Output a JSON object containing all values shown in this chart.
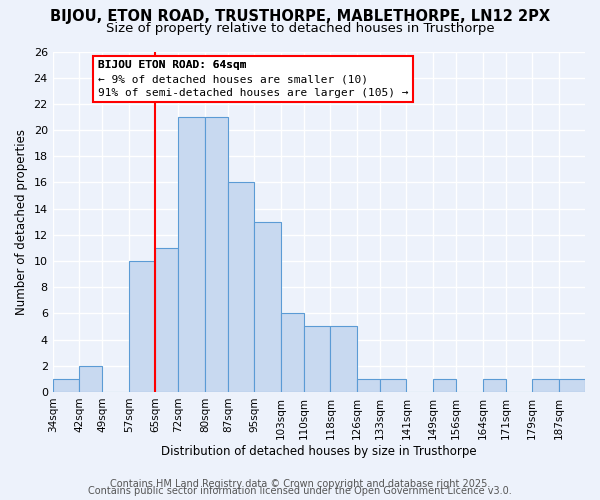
{
  "title": "BIJOU, ETON ROAD, TRUSTHORPE, MABLETHORPE, LN12 2PX",
  "subtitle": "Size of property relative to detached houses in Trusthorpe",
  "xlabel": "Distribution of detached houses by size in Trusthorpe",
  "ylabel": "Number of detached properties",
  "bin_labels": [
    "34sqm",
    "42sqm",
    "49sqm",
    "57sqm",
    "65sqm",
    "72sqm",
    "80sqm",
    "87sqm",
    "95sqm",
    "103sqm",
    "110sqm",
    "118sqm",
    "126sqm",
    "133sqm",
    "141sqm",
    "149sqm",
    "156sqm",
    "164sqm",
    "171sqm",
    "179sqm",
    "187sqm"
  ],
  "bin_edges": [
    34,
    42,
    49,
    57,
    65,
    72,
    80,
    87,
    95,
    103,
    110,
    118,
    126,
    133,
    141,
    149,
    156,
    164,
    171,
    179,
    187
  ],
  "bar_heights": [
    1,
    2,
    0,
    10,
    11,
    21,
    21,
    16,
    13,
    6,
    5,
    5,
    1,
    1,
    0,
    1,
    0,
    1,
    0,
    1,
    1
  ],
  "bar_color": "#c8d9f0",
  "bar_edge_color": "#5b9bd5",
  "reference_line_x": 65,
  "reference_line_color": "red",
  "ylim": [
    0,
    26
  ],
  "yticks": [
    0,
    2,
    4,
    6,
    8,
    10,
    12,
    14,
    16,
    18,
    20,
    22,
    24,
    26
  ],
  "annotation_title": "BIJOU ETON ROAD: 64sqm",
  "annotation_line1": "← 9% of detached houses are smaller (10)",
  "annotation_line2": "91% of semi-detached houses are larger (105) →",
  "footer_line1": "Contains HM Land Registry data © Crown copyright and database right 2025.",
  "footer_line2": "Contains public sector information licensed under the Open Government Licence v3.0.",
  "background_color": "#edf2fb",
  "grid_color": "#ffffff",
  "title_fontsize": 10.5,
  "subtitle_fontsize": 9.5,
  "axis_fontsize": 8.5,
  "footer_fontsize": 7
}
